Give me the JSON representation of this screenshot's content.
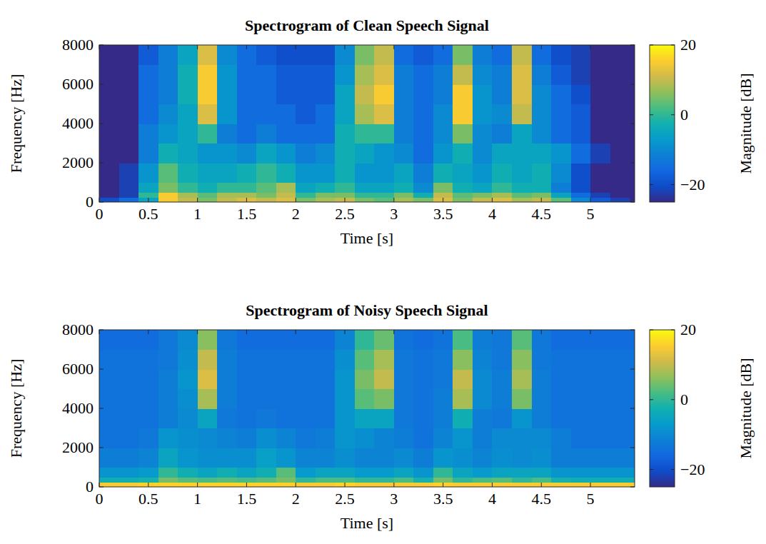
{
  "chart_data": [
    {
      "type": "heatmap",
      "title": "Spectrogram of Clean Speech Signal",
      "x_label": "Time [s]",
      "y_label": "Frequency [Hz]",
      "xlim": [
        0,
        5.45
      ],
      "ylim": [
        0,
        8000
      ],
      "xticks": [
        0,
        0.5,
        1,
        1.5,
        2,
        2.5,
        3,
        3.5,
        4,
        4.5,
        5
      ],
      "yticks": [
        0,
        2000,
        4000,
        6000,
        8000
      ],
      "x_bins": [
        0,
        0.2,
        0.4,
        0.6,
        0.8,
        1,
        1.2,
        1.4,
        1.6,
        1.8,
        2,
        2.2,
        2.4,
        2.6,
        2.8,
        3,
        3.2,
        3.4,
        3.6,
        3.8,
        4,
        4.2,
        4.4,
        4.6,
        4.8,
        5,
        5.2,
        5.4,
        5.45
      ],
      "y_bins": [
        0,
        250,
        500,
        1000,
        2000,
        3000,
        4000,
        5000,
        6000,
        7000,
        8000
      ],
      "z": [
        [
          -20,
          -15,
          -5,
          15,
          10,
          5,
          10,
          12,
          10,
          12,
          5,
          8,
          10,
          5,
          3,
          8,
          5,
          12,
          5,
          10,
          12,
          8,
          10,
          3,
          -10,
          -18,
          -22,
          -25
        ],
        [
          -25,
          -22,
          0,
          15,
          8,
          3,
          8,
          8,
          5,
          10,
          0,
          5,
          5,
          0,
          0,
          5,
          -3,
          10,
          3,
          5,
          8,
          3,
          5,
          -5,
          -15,
          -22,
          -25,
          -25
        ],
        [
          -25,
          -22,
          -5,
          5,
          0,
          -3,
          0,
          0,
          3,
          8,
          -5,
          -3,
          0,
          -5,
          -5,
          -3,
          -10,
          5,
          -3,
          -5,
          0,
          -3,
          -3,
          -12,
          -20,
          -25,
          -25,
          -25
        ],
        [
          -25,
          -22,
          -8,
          3,
          -3,
          -5,
          -5,
          -3,
          0,
          -3,
          -8,
          -8,
          -3,
          -8,
          -8,
          -5,
          -12,
          -3,
          -5,
          -8,
          -3,
          -5,
          -3,
          -10,
          -20,
          -25,
          -25,
          -25
        ],
        [
          -25,
          -25,
          -12,
          -3,
          -5,
          -8,
          -8,
          -10,
          -5,
          -8,
          -12,
          -10,
          -3,
          -5,
          -8,
          -10,
          -15,
          -8,
          -3,
          -10,
          -5,
          -5,
          -5,
          -8,
          -15,
          -22,
          -25,
          -25
        ],
        [
          -25,
          -25,
          -12,
          -8,
          -5,
          0,
          -12,
          -15,
          -12,
          -15,
          -15,
          -15,
          -3,
          0,
          0,
          -12,
          -15,
          -10,
          5,
          -10,
          -12,
          -5,
          -10,
          -15,
          -18,
          -25,
          -25,
          -25
        ],
        [
          -25,
          -25,
          -15,
          -10,
          -5,
          12,
          -8,
          -15,
          -15,
          -15,
          -18,
          -15,
          -5,
          8,
          12,
          -12,
          -15,
          -10,
          15,
          -8,
          -10,
          10,
          -10,
          -15,
          -18,
          -25,
          -25,
          -25
        ],
        [
          -25,
          -25,
          -15,
          -12,
          -3,
          15,
          -8,
          -15,
          -15,
          -18,
          -18,
          -18,
          -5,
          10,
          15,
          -12,
          -15,
          -12,
          15,
          -8,
          -12,
          12,
          -10,
          -15,
          -20,
          -25,
          -25,
          -25
        ],
        [
          -25,
          -25,
          -15,
          -12,
          -3,
          15,
          -8,
          -15,
          -15,
          -18,
          -18,
          -18,
          -8,
          8,
          12,
          -12,
          -15,
          -12,
          10,
          -10,
          -12,
          12,
          -12,
          -18,
          -22,
          -25,
          -25,
          -25
        ],
        [
          -25,
          -25,
          -18,
          -12,
          -5,
          12,
          -10,
          -15,
          -18,
          -20,
          -20,
          -20,
          -10,
          5,
          10,
          -15,
          -18,
          -15,
          5,
          -12,
          -15,
          10,
          -15,
          -20,
          -22,
          -25,
          -25,
          -25
        ]
      ],
      "colorbar": {
        "label": "Magnitude [dB]",
        "lim": [
          -25,
          20
        ],
        "ticks": [
          {
            "value": -20,
            "label": "−20"
          },
          0,
          20
        ]
      }
    },
    {
      "type": "heatmap",
      "title": "Spectrogram of Noisy Speech Signal",
      "x_label": "Time [s]",
      "y_label": "Frequency [Hz]",
      "xlim": [
        0,
        5.45
      ],
      "ylim": [
        0,
        8000
      ],
      "xticks": [
        0,
        0.5,
        1,
        1.5,
        2,
        2.5,
        3,
        3.5,
        4,
        4.5,
        5
      ],
      "yticks": [
        0,
        2000,
        4000,
        6000,
        8000
      ],
      "x_bins": [
        0,
        0.2,
        0.4,
        0.6,
        0.8,
        1,
        1.2,
        1.4,
        1.6,
        1.8,
        2,
        2.2,
        2.4,
        2.6,
        2.8,
        3,
        3.2,
        3.4,
        3.6,
        3.8,
        4,
        4.2,
        4.4,
        4.6,
        4.8,
        5,
        5.2,
        5.4,
        5.45
      ],
      "y_bins": [
        0,
        250,
        500,
        1000,
        2000,
        3000,
        4000,
        5000,
        6000,
        7000,
        8000
      ],
      "z": [
        [
          15,
          15,
          16,
          16,
          16,
          16,
          16,
          16,
          16,
          16,
          15,
          15,
          16,
          15,
          15,
          15,
          15,
          16,
          15,
          15,
          15,
          15,
          15,
          15,
          15,
          15,
          15,
          15
        ],
        [
          -3,
          -3,
          -2,
          5,
          3,
          2,
          3,
          2,
          3,
          5,
          0,
          2,
          2,
          0,
          0,
          2,
          -2,
          5,
          0,
          2,
          3,
          0,
          2,
          -2,
          -3,
          -3,
          -3,
          -3
        ],
        [
          -8,
          -8,
          -7,
          0,
          -3,
          -5,
          -3,
          -5,
          -3,
          3,
          -7,
          -5,
          -5,
          -7,
          -7,
          -5,
          -8,
          0,
          -5,
          -7,
          -5,
          -5,
          -5,
          -8,
          -8,
          -8,
          -8,
          -8
        ],
        [
          -12,
          -12,
          -11,
          -5,
          -8,
          -9,
          -9,
          -9,
          -6,
          -8,
          -11,
          -11,
          -9,
          -11,
          -11,
          -10,
          -12,
          -8,
          -9,
          -11,
          -9,
          -10,
          -9,
          -12,
          -12,
          -12,
          -12,
          -12
        ],
        [
          -14,
          -14,
          -13,
          -8,
          -9,
          -10,
          -11,
          -12,
          -9,
          -11,
          -13,
          -12,
          -8,
          -9,
          -11,
          -12,
          -14,
          -11,
          -8,
          -12,
          -10,
          -10,
          -10,
          -12,
          -14,
          -14,
          -14,
          -14
        ],
        [
          -14,
          -14,
          -14,
          -12,
          -10,
          -5,
          -13,
          -14,
          -13,
          -14,
          -14,
          -14,
          -8,
          -5,
          -5,
          -13,
          -14,
          -12,
          -3,
          -12,
          -13,
          -8,
          -12,
          -14,
          -14,
          -14,
          -14,
          -14
        ],
        [
          -14,
          -14,
          -14,
          -12,
          -9,
          8,
          -12,
          -14,
          -14,
          -14,
          -14,
          -14,
          -8,
          3,
          5,
          -13,
          -14,
          -12,
          8,
          -10,
          -12,
          5,
          -12,
          -14,
          -14,
          -14,
          -14,
          -14
        ],
        [
          -14,
          -14,
          -14,
          -12,
          -8,
          12,
          -12,
          -14,
          -14,
          -14,
          -14,
          -14,
          -8,
          5,
          10,
          -13,
          -14,
          -13,
          10,
          -10,
          -12,
          8,
          -12,
          -14,
          -14,
          -14,
          -14,
          -14
        ],
        [
          -14,
          -14,
          -14,
          -13,
          -9,
          10,
          -12,
          -14,
          -14,
          -14,
          -14,
          -14,
          -9,
          3,
          8,
          -13,
          -14,
          -13,
          6,
          -11,
          -13,
          6,
          -13,
          -14,
          -14,
          -14,
          -14,
          -14
        ],
        [
          -15,
          -15,
          -15,
          -13,
          -10,
          6,
          -13,
          -15,
          -15,
          -15,
          -15,
          -15,
          -11,
          0,
          4,
          -14,
          -15,
          -14,
          2,
          -12,
          -13,
          3,
          -13,
          -15,
          -15,
          -15,
          -15,
          -15
        ]
      ],
      "colorbar": {
        "label": "Magnitude [dB]",
        "lim": [
          -25,
          20
        ],
        "ticks": [
          {
            "value": -20,
            "label": "−20"
          },
          0,
          20
        ]
      }
    }
  ]
}
